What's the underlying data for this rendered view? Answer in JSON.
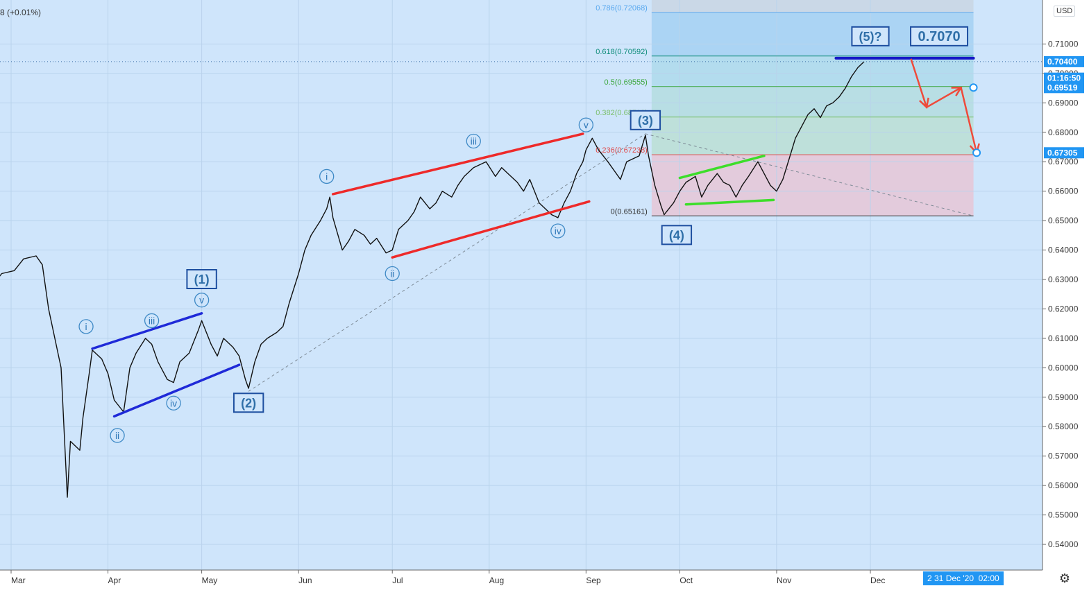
{
  "header": {
    "ticker_fragment": "8",
    "change": "(+0.01%)"
  },
  "currency_label": "USD",
  "time_badge": "2 31 Dec '20  02:00",
  "colors": {
    "background": "#cfe5fb",
    "price_line": "#111111",
    "channel_red": "#ee2a2a",
    "wedge_blue": "#1f2ad8",
    "triangle_green": "#3dde2a",
    "target_blue": "#1518c7",
    "arrow_red": "#ef4a3a",
    "label_blue": "#2f6fa8",
    "fib_upper_fill": "#b3dcf3",
    "fib_lower_fill": "#e6c7d6",
    "price_badge": "#2196f3"
  },
  "chart_data": {
    "type": "line",
    "title": "",
    "xlabel": "",
    "ylabel": "",
    "x_ticks": [
      "Mar",
      "Apr",
      "May",
      "Jun",
      "Jul",
      "Aug",
      "Sep",
      "Oct",
      "Nov",
      "Dec"
    ],
    "y_ticks": [
      "0.54000",
      "0.55000",
      "0.56000",
      "0.57000",
      "0.58000",
      "0.59000",
      "0.60000",
      "0.61000",
      "0.62000",
      "0.63000",
      "0.64000",
      "0.65000",
      "0.66000",
      "0.67000",
      "0.68000",
      "0.69000",
      "0.70000",
      "0.71000"
    ],
    "ylim": [
      0.535,
      0.7235
    ],
    "grid": true,
    "series": [
      {
        "name": "",
        "points": [
          [
            "2020-02-20",
            0.634
          ],
          [
            "2020-02-24",
            0.628
          ],
          [
            "2020-02-27",
            0.632
          ],
          [
            "2020-03-02",
            0.633
          ],
          [
            "2020-03-05",
            0.637
          ],
          [
            "2020-03-09",
            0.638
          ],
          [
            "2020-03-11",
            0.635
          ],
          [
            "2020-03-13",
            0.62
          ],
          [
            "2020-03-16",
            0.605
          ],
          [
            "2020-03-17",
            0.6
          ],
          [
            "2020-03-19",
            0.556
          ],
          [
            "2020-03-20",
            0.575
          ],
          [
            "2020-03-23",
            0.572
          ],
          [
            "2020-03-24",
            0.583
          ],
          [
            "2020-03-26",
            0.598
          ],
          [
            "2020-03-27",
            0.606
          ],
          [
            "2020-03-30",
            0.603
          ],
          [
            "2020-04-01",
            0.598
          ],
          [
            "2020-04-03",
            0.589
          ],
          [
            "2020-04-06",
            0.585
          ],
          [
            "2020-04-08",
            0.6
          ],
          [
            "2020-04-10",
            0.605
          ],
          [
            "2020-04-13",
            0.61
          ],
          [
            "2020-04-15",
            0.608
          ],
          [
            "2020-04-17",
            0.602
          ],
          [
            "2020-04-20",
            0.596
          ],
          [
            "2020-04-22",
            0.595
          ],
          [
            "2020-04-24",
            0.602
          ],
          [
            "2020-04-27",
            0.605
          ],
          [
            "2020-04-30",
            0.613
          ],
          [
            "2020-05-01",
            0.616
          ],
          [
            "2020-05-04",
            0.608
          ],
          [
            "2020-05-06",
            0.604
          ],
          [
            "2020-05-08",
            0.61
          ],
          [
            "2020-05-11",
            0.607
          ],
          [
            "2020-05-13",
            0.604
          ],
          [
            "2020-05-15",
            0.596
          ],
          [
            "2020-05-16",
            0.593
          ],
          [
            "2020-05-18",
            0.602
          ],
          [
            "2020-05-20",
            0.608
          ],
          [
            "2020-05-22",
            0.61
          ],
          [
            "2020-05-25",
            0.612
          ],
          [
            "2020-05-27",
            0.614
          ],
          [
            "2020-05-29",
            0.622
          ],
          [
            "2020-06-01",
            0.632
          ],
          [
            "2020-06-03",
            0.64
          ],
          [
            "2020-06-05",
            0.645
          ],
          [
            "2020-06-08",
            0.65
          ],
          [
            "2020-06-10",
            0.654
          ],
          [
            "2020-06-11",
            0.658
          ],
          [
            "2020-06-12",
            0.651
          ],
          [
            "2020-06-15",
            0.64
          ],
          [
            "2020-06-17",
            0.643
          ],
          [
            "2020-06-19",
            0.647
          ],
          [
            "2020-06-22",
            0.645
          ],
          [
            "2020-06-24",
            0.642
          ],
          [
            "2020-06-26",
            0.644
          ],
          [
            "2020-06-29",
            0.639
          ],
          [
            "2020-07-01",
            0.64
          ],
          [
            "2020-07-03",
            0.647
          ],
          [
            "2020-07-06",
            0.65
          ],
          [
            "2020-07-08",
            0.653
          ],
          [
            "2020-07-10",
            0.658
          ],
          [
            "2020-07-13",
            0.654
          ],
          [
            "2020-07-15",
            0.656
          ],
          [
            "2020-07-17",
            0.66
          ],
          [
            "2020-07-20",
            0.658
          ],
          [
            "2020-07-22",
            0.662
          ],
          [
            "2020-07-24",
            0.665
          ],
          [
            "2020-07-27",
            0.668
          ],
          [
            "2020-07-29",
            0.669
          ],
          [
            "2020-07-31",
            0.67
          ],
          [
            "2020-08-03",
            0.665
          ],
          [
            "2020-08-05",
            0.668
          ],
          [
            "2020-08-07",
            0.666
          ],
          [
            "2020-08-10",
            0.663
          ],
          [
            "2020-08-12",
            0.66
          ],
          [
            "2020-08-14",
            0.664
          ],
          [
            "2020-08-17",
            0.656
          ],
          [
            "2020-08-19",
            0.654
          ],
          [
            "2020-08-21",
            0.652
          ],
          [
            "2020-08-23",
            0.651
          ],
          [
            "2020-08-25",
            0.656
          ],
          [
            "2020-08-27",
            0.66
          ],
          [
            "2020-08-29",
            0.666
          ],
          [
            "2020-08-31",
            0.67
          ],
          [
            "2020-09-01",
            0.674
          ],
          [
            "2020-09-03",
            0.678
          ],
          [
            "2020-09-05",
            0.674
          ],
          [
            "2020-09-08",
            0.67
          ],
          [
            "2020-09-10",
            0.667
          ],
          [
            "2020-09-12",
            0.664
          ],
          [
            "2020-09-14",
            0.67
          ],
          [
            "2020-09-16",
            0.671
          ],
          [
            "2020-09-18",
            0.672
          ],
          [
            "2020-09-20",
            0.679
          ],
          [
            "2020-09-21",
            0.672
          ],
          [
            "2020-09-23",
            0.662
          ],
          [
            "2020-09-25",
            0.655
          ],
          [
            "2020-09-26",
            0.652
          ],
          [
            "2020-09-29",
            0.656
          ],
          [
            "2020-10-01",
            0.66
          ],
          [
            "2020-10-03",
            0.663
          ],
          [
            "2020-10-06",
            0.665
          ],
          [
            "2020-10-08",
            0.658
          ],
          [
            "2020-10-10",
            0.662
          ],
          [
            "2020-10-13",
            0.666
          ],
          [
            "2020-10-15",
            0.663
          ],
          [
            "2020-10-17",
            0.662
          ],
          [
            "2020-10-19",
            0.658
          ],
          [
            "2020-10-21",
            0.662
          ],
          [
            "2020-10-23",
            0.665
          ],
          [
            "2020-10-26",
            0.67
          ],
          [
            "2020-10-28",
            0.666
          ],
          [
            "2020-10-30",
            0.662
          ],
          [
            "2020-11-01",
            0.66
          ],
          [
            "2020-11-03",
            0.664
          ],
          [
            "2020-11-05",
            0.671
          ],
          [
            "2020-11-07",
            0.678
          ],
          [
            "2020-11-09",
            0.682
          ],
          [
            "2020-11-11",
            0.686
          ],
          [
            "2020-11-13",
            0.688
          ],
          [
            "2020-11-15",
            0.685
          ],
          [
            "2020-11-17",
            0.689
          ],
          [
            "2020-11-19",
            0.69
          ],
          [
            "2020-11-21",
            0.692
          ],
          [
            "2020-11-23",
            0.695
          ],
          [
            "2020-11-25",
            0.699
          ],
          [
            "2020-11-27",
            0.702
          ],
          [
            "2020-11-29",
            0.704
          ]
        ]
      }
    ],
    "fibonacci": {
      "levels": [
        {
          "label": "0.786(0.72068)",
          "value": 0.72068,
          "color": "#5aa9ef"
        },
        {
          "label": "0.618(0.70592)",
          "value": 0.70592,
          "color": "#0e8c7a"
        },
        {
          "label": "0.5(0.69555)",
          "value": 0.69555,
          "color": "#3aa53a"
        },
        {
          "label": "0.382(0.68518)",
          "value": 0.68518,
          "color": "#7bbf6b"
        },
        {
          "label": "0.236(0.67238)",
          "value": 0.67238,
          "color": "#e04848"
        },
        {
          "label": "0(0.65161)",
          "value": 0.65161,
          "color": "#333333"
        }
      ],
      "date_start": "2020-09-22",
      "date_end": "2021-01-03"
    },
    "trendlines": [
      {
        "kind": "channel-red",
        "from": [
          "2020-06-12",
          0.659
        ],
        "to": [
          "2020-08-31",
          0.6795
        ]
      },
      {
        "kind": "channel-red",
        "from": [
          "2020-07-01",
          0.6375
        ],
        "to": [
          "2020-09-02",
          0.6565
        ]
      },
      {
        "kind": "wedge-blue",
        "from": [
          "2020-03-27",
          0.6065
        ],
        "to": [
          "2020-05-01",
          0.6185
        ]
      },
      {
        "kind": "wedge-blue",
        "from": [
          "2020-04-03",
          0.5835
        ],
        "to": [
          "2020-05-13",
          0.601
        ]
      },
      {
        "kind": "triangle-green",
        "from": [
          "2020-10-01",
          0.6645
        ],
        "to": [
          "2020-10-28",
          0.672
        ]
      },
      {
        "kind": "triangle-green",
        "from": [
          "2020-10-03",
          0.6555
        ],
        "to": [
          "2020-10-31",
          0.657
        ]
      },
      {
        "kind": "target-blue",
        "from": [
          "2020-11-20",
          0.7052
        ],
        "to": [
          "2021-01-03",
          0.7052
        ]
      },
      {
        "kind": "dashed",
        "from": [
          "2020-05-16",
          0.592
        ],
        "to": [
          "2020-09-20",
          0.6795
        ]
      },
      {
        "kind": "dashed",
        "from": [
          "2020-09-20",
          0.6795
        ],
        "to": [
          "2021-01-03",
          0.6516
        ]
      }
    ],
    "projection_path": [
      [
        "2020-12-14",
        0.705
      ],
      [
        "2020-12-19",
        0.6885
      ],
      [
        "2020-12-30",
        0.6952
      ],
      [
        "2021-01-04",
        0.673
      ]
    ],
    "projection_markers": [
      [
        "2021-01-03",
        0.69519
      ],
      [
        "2021-01-04",
        0.67305
      ]
    ],
    "wave_labels": [
      {
        "text": "(1)",
        "boxed": true,
        "at": [
          "2020-05-01",
          0.63
        ]
      },
      {
        "text": "(2)",
        "boxed": true,
        "at": [
          "2020-05-16",
          0.588
        ]
      },
      {
        "text": "(3)",
        "boxed": true,
        "at": [
          "2020-09-20",
          0.684
        ]
      },
      {
        "text": "(4)",
        "boxed": true,
        "at": [
          "2020-09-30",
          0.645
        ]
      },
      {
        "text": "(5)?",
        "boxed": true,
        "at": [
          "2020-12-01",
          0.7125
        ]
      },
      {
        "text": "0.7070",
        "boxed": true,
        "at": [
          "2020-12-23",
          0.7125
        ]
      },
      {
        "text": "i",
        "boxed": false,
        "at": [
          "2020-03-25",
          0.614
        ]
      },
      {
        "text": "ii",
        "boxed": false,
        "at": [
          "2020-04-04",
          0.577
        ]
      },
      {
        "text": "iii",
        "boxed": false,
        "at": [
          "2020-04-15",
          0.616
        ]
      },
      {
        "text": "iv",
        "boxed": false,
        "at": [
          "2020-04-22",
          0.588
        ]
      },
      {
        "text": "v",
        "boxed": false,
        "at": [
          "2020-05-01",
          0.623
        ]
      },
      {
        "text": "i",
        "boxed": false,
        "at": [
          "2020-06-10",
          0.665
        ]
      },
      {
        "text": "ii",
        "boxed": false,
        "at": [
          "2020-07-01",
          0.632
        ]
      },
      {
        "text": "iii",
        "boxed": false,
        "at": [
          "2020-07-27",
          0.677
        ]
      },
      {
        "text": "iv",
        "boxed": false,
        "at": [
          "2020-08-23",
          0.6465
        ]
      },
      {
        "text": "v",
        "boxed": false,
        "at": [
          "2020-09-01",
          0.6825
        ]
      }
    ],
    "price_badges": [
      {
        "text": "0.70400",
        "value": 0.704
      },
      {
        "text": "01:16:50",
        "value": 0.6984
      },
      {
        "text": "0.69519",
        "value": 0.69519
      },
      {
        "text": "0.67305",
        "value": 0.67305
      }
    ],
    "current_price": 0.704
  }
}
